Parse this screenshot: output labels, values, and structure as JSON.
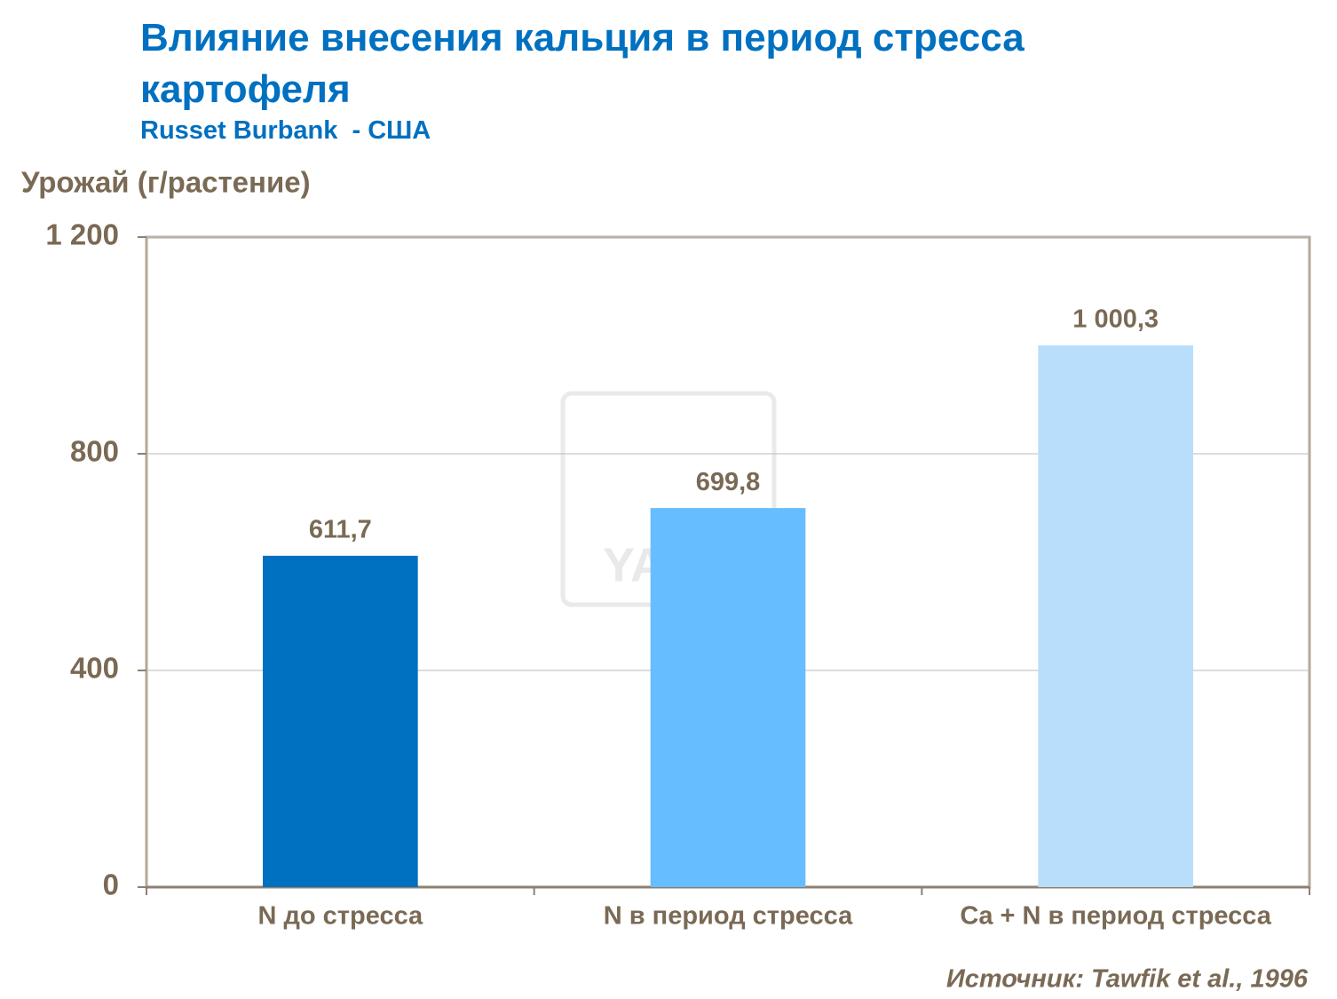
{
  "chart_data": {
    "type": "bar",
    "title": "Влияние внесения кальция в период стресса картофеля",
    "subtitle": "Russet Burbank  - США",
    "y_label": "Урожай (г/растение)",
    "categories": [
      "N до стресса",
      "N в период стресса",
      "Ca + N в период стресса"
    ],
    "values": [
      611.7,
      699.8,
      1000.3
    ],
    "value_labels": [
      "611,7",
      "699,8",
      "1 000,3"
    ],
    "colors": [
      "#0070c0",
      "#66bdff",
      "#b8defc"
    ],
    "ylim": [
      0,
      1200
    ],
    "yticks": [
      0,
      400,
      800,
      {
        "value": 1200,
        "label": "1 200"
      }
    ],
    "grid": true,
    "source": "Источник: Tawfik et al., 1996",
    "watermark": "YARA"
  }
}
